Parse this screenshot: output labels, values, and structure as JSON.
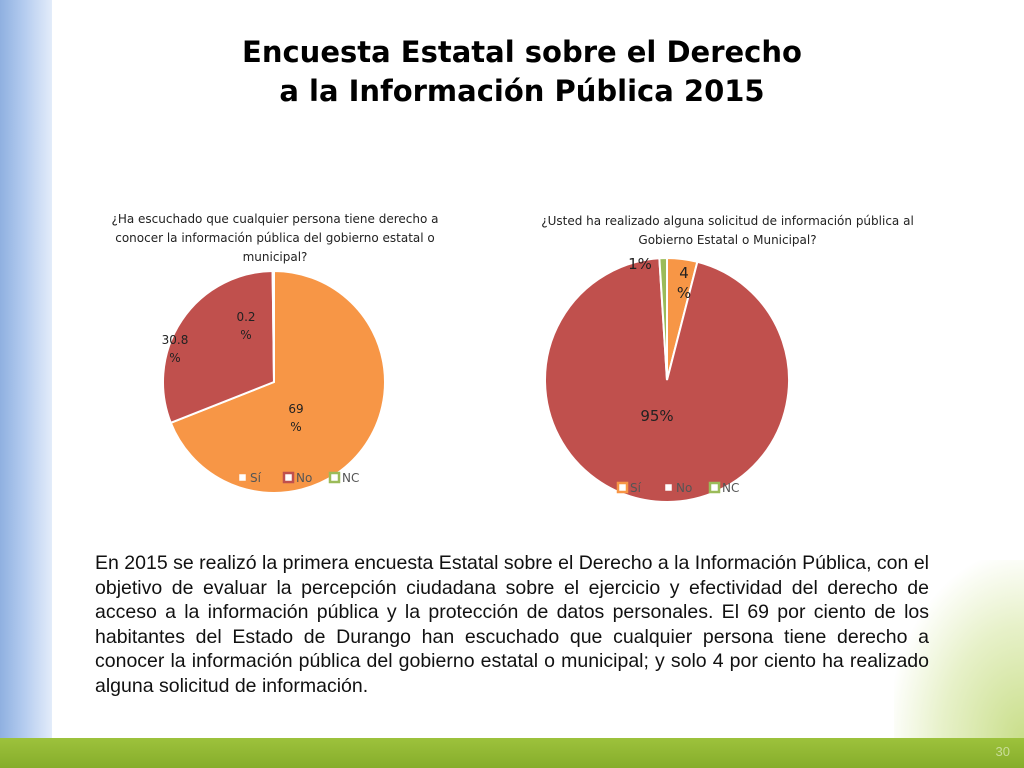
{
  "slide": {
    "title_line1": "Encuesta Estatal sobre el Derecho",
    "title_line2": "a la Información Pública 2015",
    "body": "En 2015 se realizó la primera encuesta Estatal sobre el Derecho a la Información Pública, con el objetivo de evaluar la percepción ciudadana sobre el ejercicio y efectividad del derecho de acceso a la información pública y la protección de datos personales. El 69 por ciento de los habitantes del Estado de Durango han escuchado que cualquier persona tiene derecho a conocer la información pública del gobierno estatal o municipal; y solo 4 por ciento ha realizado alguna solicitud de información.",
    "page_number": "30"
  },
  "chart_data": [
    {
      "type": "pie",
      "title": "¿Ha escuchado que cualquier persona tiene derecho a conocer la información pública del gobierno estatal o municipal?",
      "categories": [
        "Sí",
        "No",
        "NC"
      ],
      "values": [
        69,
        30.8,
        0.2
      ],
      "data_labels": [
        "69\n%",
        "30.8\n%",
        "0.2\n%"
      ],
      "colors": [
        "#f79646",
        "#c0504d",
        "#9bbb59"
      ],
      "legend": "bottom"
    },
    {
      "type": "pie",
      "title": "¿Usted ha realizado alguna solicitud de información pública al Gobierno Estatal o Municipal?",
      "categories": [
        "Sí",
        "No",
        "NC"
      ],
      "values": [
        4,
        95,
        1
      ],
      "data_labels": [
        "4\n%",
        "95%",
        "1%"
      ],
      "colors": [
        "#f79646",
        "#c0504d",
        "#9bbb59"
      ],
      "legend": "bottom"
    }
  ]
}
